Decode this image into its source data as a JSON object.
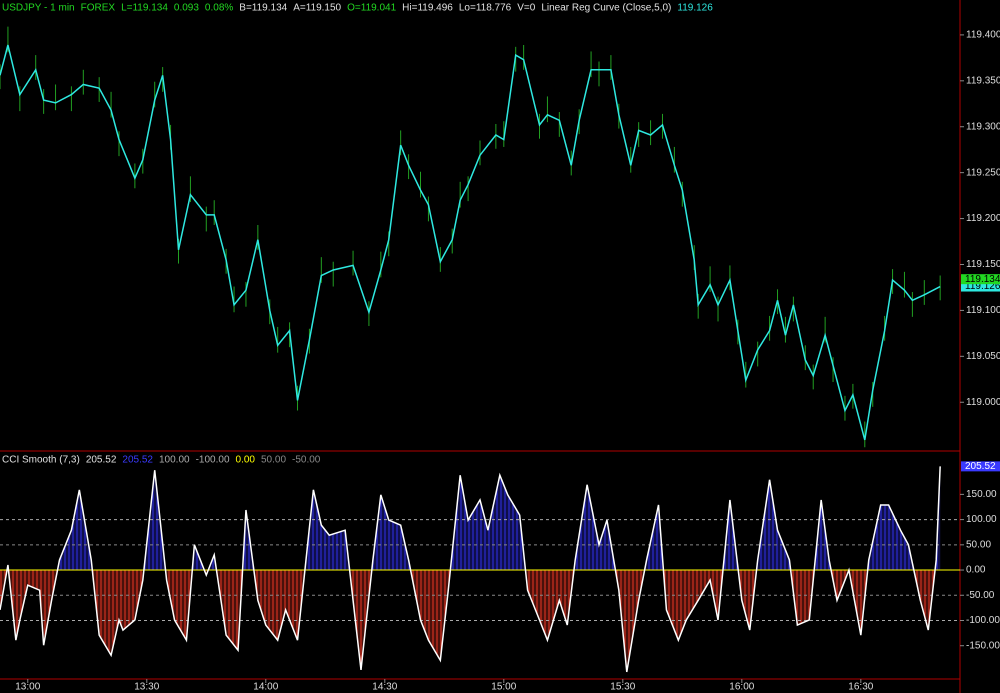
{
  "chart_data": [
    {
      "type": "line",
      "header": [
        {
          "text": "USDJPY - 1 min",
          "color": "#22d822"
        },
        {
          "text": "FOREX",
          "color": "#22d822"
        },
        {
          "text": "L=119.134",
          "color": "#22d822"
        },
        {
          "text": "0.093",
          "color": "#22d822"
        },
        {
          "text": "0.08%",
          "color": "#22d822"
        },
        {
          "text": "B=119.134",
          "color": "#e0e0e0"
        },
        {
          "text": "A=119.150",
          "color": "#e0e0e0"
        },
        {
          "text": "O=119.041",
          "color": "#22d822"
        },
        {
          "text": "Hi=119.496",
          "color": "#e0e0e0"
        },
        {
          "text": "Lo=118.776",
          "color": "#e0e0e0"
        },
        {
          "text": "V=0",
          "color": "#e0e0e0"
        }
      ],
      "x": [
        "12:53",
        "12:55",
        "12:58",
        "13:02",
        "13:04",
        "13:07",
        "13:11",
        "13:14",
        "13:18",
        "13:21",
        "13:23",
        "13:27",
        "13:29",
        "13:32",
        "13:34",
        "13:36",
        "13:38",
        "13:41",
        "13:45",
        "13:47",
        "13:50",
        "13:52",
        "13:55",
        "13:58",
        "14:01",
        "14:03",
        "14:06",
        "14:08",
        "14:11",
        "14:14",
        "14:17",
        "14:22",
        "14:26",
        "14:29",
        "14:31",
        "14:34",
        "14:36",
        "14:39",
        "14:41",
        "14:44",
        "14:47",
        "14:49",
        "14:51",
        "14:54",
        "14:58",
        "15:00",
        "15:03",
        "15:05",
        "15:09",
        "15:11",
        "15:14",
        "15:17",
        "15:19",
        "15:22",
        "15:24",
        "15:27",
        "15:29",
        "15:32",
        "15:34",
        "15:37",
        "15:40",
        "15:43",
        "15:45",
        "15:48",
        "15:49",
        "15:52",
        "15:54",
        "15:57",
        "15:59",
        "16:01",
        "16:04",
        "16:07",
        "16:09",
        "16:11",
        "16:13",
        "16:16",
        "16:18",
        "16:21",
        "16:23",
        "16:26",
        "16:28",
        "16:31",
        "16:33",
        "16:36",
        "16:38",
        "16:41",
        "16:43",
        "16:46",
        "16:50"
      ],
      "series": [
        {
          "name": "Linear Reg Curve (Close,5,0)",
          "color": "#2ee8e0",
          "values": [
            119.356,
            119.389,
            119.335,
            119.362,
            119.329,
            119.326,
            119.335,
            119.346,
            119.342,
            119.318,
            119.286,
            119.244,
            119.264,
            119.329,
            119.356,
            119.286,
            119.166,
            119.226,
            119.204,
            119.204,
            119.155,
            119.106,
            119.122,
            119.177,
            119.1,
            119.062,
            119.078,
            119.002,
            119.068,
            119.138,
            119.144,
            119.149,
            119.098,
            119.144,
            119.177,
            119.28,
            119.258,
            119.231,
            119.215,
            119.153,
            119.177,
            119.22,
            119.237,
            119.269,
            119.291,
            119.286,
            119.378,
            119.373,
            119.302,
            119.313,
            119.307,
            119.258,
            119.307,
            119.362,
            119.362,
            119.362,
            119.313,
            119.258,
            119.296,
            119.291,
            119.302,
            119.258,
            119.231,
            119.155,
            119.106,
            119.128,
            119.106,
            119.133,
            119.078,
            119.024,
            119.057,
            119.078,
            119.111,
            119.073,
            119.106,
            119.046,
            119.029,
            119.073,
            119.04,
            118.991,
            119.008,
            118.959,
            119.013,
            119.078,
            119.133,
            119.122,
            119.111,
            119.117,
            119.126
          ]
        }
      ],
      "bars": {
        "color": "#22a022",
        "high": [
          119.368,
          119.409,
          119.344,
          119.378,
          119.341,
          119.346,
          119.344,
          119.362,
          119.354,
          119.338,
          119.295,
          119.26,
          119.276,
          119.349,
          119.365,
          119.302,
          119.178,
          119.246,
          119.213,
          119.22,
          119.167,
          119.126,
          119.131,
          119.193,
          119.112,
          119.082,
          119.087,
          119.018,
          119.08,
          119.158,
          119.153,
          119.165,
          119.11,
          119.164,
          119.186,
          119.296,
          119.27,
          119.251,
          119.224,
          119.169,
          119.189,
          119.24,
          119.246,
          119.285,
          119.303,
          119.306,
          119.387,
          119.389,
          119.314,
          119.333,
          119.316,
          119.274,
          119.319,
          119.382,
          119.371,
          119.378,
          119.325,
          119.278,
          119.305,
          119.307,
          119.314,
          119.278,
          119.24,
          119.171,
          119.118,
          119.148,
          119.115,
          119.149,
          119.09,
          119.044,
          119.066,
          119.094,
          119.123,
          119.093,
          119.115,
          119.062,
          119.041,
          119.093,
          119.049,
          119.007,
          119.02,
          118.979,
          119.022,
          119.094,
          119.145,
          119.142,
          119.12,
          119.133,
          119.138
        ],
        "low": [
          119.341,
          119.381,
          119.317,
          119.351,
          119.314,
          119.318,
          119.317,
          119.335,
          119.327,
          119.31,
          119.268,
          119.233,
          119.249,
          119.321,
          119.338,
          119.275,
          119.151,
          119.218,
          119.186,
          119.193,
          119.14,
          119.098,
          119.104,
          119.166,
          119.085,
          119.054,
          119.06,
          118.991,
          119.053,
          119.13,
          119.126,
          119.138,
          119.083,
          119.136,
          119.159,
          119.269,
          119.243,
          119.223,
          119.197,
          119.142,
          119.162,
          119.212,
          119.219,
          119.258,
          119.276,
          119.278,
          119.36,
          119.362,
          119.287,
          119.305,
          119.289,
          119.247,
          119.292,
          119.354,
          119.344,
          119.351,
          119.298,
          119.25,
          119.278,
          119.28,
          119.287,
          119.25,
          119.213,
          119.144,
          119.091,
          119.12,
          119.088,
          119.122,
          119.063,
          119.016,
          119.039,
          119.067,
          119.096,
          119.065,
          119.088,
          119.035,
          119.014,
          119.065,
          119.022,
          118.98,
          118.993,
          118.951,
          118.995,
          119.067,
          119.118,
          119.114,
          119.093,
          119.106,
          119.111
        ]
      },
      "last_price": 119.134,
      "last_price_color": "#22d822",
      "xlim": [
        "12:53",
        "16:55"
      ],
      "ylim": [
        118.948,
        119.438
      ],
      "yticks": [
        {
          "value": 119.4,
          "label": "119.400"
        },
        {
          "value": 119.35,
          "label": "119.350"
        },
        {
          "value": 119.3,
          "label": "119.300"
        },
        {
          "value": 119.25,
          "label": "119.250"
        },
        {
          "value": 119.2,
          "label": "119.200"
        },
        {
          "value": 119.15,
          "label": "119.150"
        },
        {
          "value": 119.1,
          "label": "119.100"
        },
        {
          "value": 119.05,
          "label": "119.050"
        },
        {
          "value": 119.0,
          "label": "119.000"
        }
      ]
    },
    {
      "type": "area",
      "title": "CCI Smooth (7,3)",
      "x": [
        "12:53",
        "12:55",
        "12:57",
        "12:58",
        "13:00",
        "13:03",
        "13:04",
        "13:06",
        "13:08",
        "13:11",
        "13:13",
        "13:16",
        "13:18",
        "13:21",
        "13:23",
        "13:24",
        "13:27",
        "13:29",
        "13:32",
        "13:35",
        "13:37",
        "13:40",
        "13:42",
        "13:45",
        "13:47",
        "13:50",
        "13:53",
        "13:55",
        "13:58",
        "14:00",
        "14:03",
        "14:05",
        "14:08",
        "14:12",
        "14:14",
        "14:16",
        "14:20",
        "14:22",
        "14:24",
        "14:27",
        "14:29",
        "14:31",
        "14:34",
        "14:36",
        "14:39",
        "14:41",
        "14:44",
        "14:46",
        "14:49",
        "14:51",
        "14:54",
        "14:56",
        "14:59",
        "15:01",
        "15:04",
        "15:06",
        "15:09",
        "15:11",
        "15:14",
        "15:16",
        "15:18",
        "15:21",
        "15:24",
        "15:26",
        "15:29",
        "15:31",
        "15:34",
        "15:36",
        "15:39",
        "15:41",
        "15:44",
        "15:46",
        "15:49",
        "15:52",
        "15:54",
        "15:57",
        "16:00",
        "16:02",
        "16:04",
        "16:07",
        "16:09",
        "16:12",
        "16:14",
        "16:17",
        "16:20",
        "16:22",
        "16:24",
        "16:27",
        "16:30",
        "16:32",
        "16:35",
        "16:37",
        "16:40",
        "16:42",
        "16:45",
        "16:47",
        "16:49",
        "16:50"
      ],
      "series": [
        {
          "color": "#ffffff",
          "value_color": "#3a3aff",
          "values": [
            -79,
            10,
            -139,
            -99,
            -30,
            -40,
            -149,
            -60,
            20,
            79,
            159,
            20,
            -129,
            -169,
            -99,
            -119,
            -99,
            -20,
            198,
            -20,
            -99,
            -139,
            50,
            -10,
            30,
            -129,
            -159,
            119,
            -60,
            -109,
            -139,
            -79,
            -139,
            159,
            89,
            69,
            79,
            -60,
            -198,
            20,
            149,
            99,
            89,
            20,
            -99,
            -139,
            -179,
            -40,
            188,
            99,
            139,
            79,
            188,
            149,
            109,
            -40,
            -99,
            -139,
            -60,
            -109,
            20,
            169,
            50,
            99,
            -40,
            -202,
            -60,
            20,
            129,
            -79,
            -139,
            -99,
            -60,
            -20,
            -99,
            139,
            -60,
            -119,
            20,
            179,
            79,
            20,
            -109,
            -99,
            139,
            20,
            -60,
            0,
            -129,
            20,
            129,
            129,
            79,
            50,
            -60,
            -119,
            20,
            205.52
          ]
        }
      ],
      "fill_above": "#2a2ad0",
      "fill_below": "#d03020",
      "levels": [
        {
          "value": 100,
          "label": "100.00",
          "color": "#aaaaaa",
          "style": "dashed"
        },
        {
          "value": -100,
          "label": "-100.00",
          "color": "#aaaaaa",
          "style": "dashed"
        },
        {
          "value": 0,
          "label": "0.00",
          "color": "#ffff00",
          "style": "solid"
        },
        {
          "value": 50,
          "label": "50.00",
          "color": "#888888",
          "style": "dashed"
        },
        {
          "value": -50,
          "label": "-50.00",
          "color": "#888888",
          "style": "dashed"
        }
      ],
      "xlim": [
        "12:53",
        "16:55"
      ],
      "ylim": [
        -214,
        234
      ],
      "yticks": [
        {
          "value": 150,
          "label": "150.00"
        },
        {
          "value": 100,
          "label": "100.00"
        },
        {
          "value": 50,
          "label": "50.00"
        },
        {
          "value": 0,
          "label": "0.00"
        },
        {
          "value": -50,
          "label": "-50.00"
        },
        {
          "value": -100,
          "label": "-100.00"
        },
        {
          "value": -150,
          "label": "-150.00"
        }
      ],
      "xticks": [
        "13:00",
        "13:30",
        "14:00",
        "14:30",
        "15:00",
        "15:30",
        "16:00",
        "16:30"
      ]
    }
  ]
}
